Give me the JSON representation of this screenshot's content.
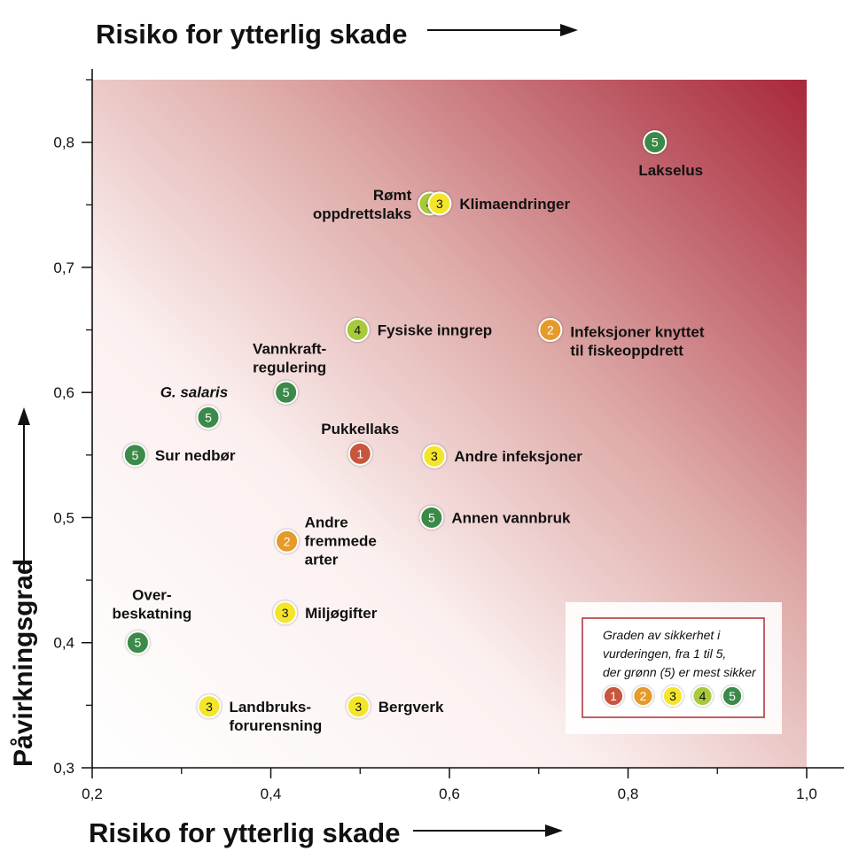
{
  "chart_data": {
    "type": "scatter",
    "title_top": "Risiko for ytterlig skade",
    "xlabel": "Risiko for ytterlig skade",
    "ylabel": "Påvirkningsgrad",
    "xlim": [
      0.2,
      1.0
    ],
    "ylim": [
      0.3,
      0.85
    ],
    "x_ticks": [
      {
        "value": 0.2,
        "label": "0,2"
      },
      {
        "value": 0.4,
        "label": "0,4"
      },
      {
        "value": 0.6,
        "label": "0,6"
      },
      {
        "value": 0.8,
        "label": "0,8"
      },
      {
        "value": 1.0,
        "label": "1,0"
      }
    ],
    "y_ticks": [
      {
        "value": 0.3,
        "label": "0,3"
      },
      {
        "value": 0.4,
        "label": "0,4"
      },
      {
        "value": 0.5,
        "label": "0,5"
      },
      {
        "value": 0.6,
        "label": "0,6"
      },
      {
        "value": 0.7,
        "label": "0,7"
      },
      {
        "value": 0.8,
        "label": "0,8"
      }
    ],
    "points": [
      {
        "name": "Lakselus",
        "label_lines": [
          "Lakselus"
        ],
        "x": 0.83,
        "y": 0.8,
        "certainty": 5,
        "label_pos": "below"
      },
      {
        "name": "Rømt oppdrettslaks",
        "label_lines": [
          "Rømt",
          "oppdrettslaks"
        ],
        "x": 0.578,
        "y": 0.751,
        "certainty": 4,
        "label_pos": "left"
      },
      {
        "name": "Klimaendringer",
        "label_lines": [
          "Klimaendringer"
        ],
        "x": 0.589,
        "y": 0.751,
        "certainty": 3,
        "label_pos": "right"
      },
      {
        "name": "Fysiske inngrep",
        "label_lines": [
          "Fysiske inngrep"
        ],
        "x": 0.497,
        "y": 0.65,
        "certainty": 4,
        "label_pos": "right"
      },
      {
        "name": "Infeksjoner knyttet til fiskeoppdrett",
        "label_lines": [
          "Infeksjoner knyttet",
          "til fiskeoppdrett"
        ],
        "x": 0.713,
        "y": 0.65,
        "certainty": 2,
        "label_pos": "right"
      },
      {
        "name": "Vannkraftregulering",
        "label_lines": [
          "Vannkraft-",
          "regulering"
        ],
        "x": 0.417,
        "y": 0.6,
        "certainty": 5,
        "label_pos": "above"
      },
      {
        "name": "G. salaris",
        "label_lines": [
          "G. salaris"
        ],
        "x": 0.33,
        "y": 0.58,
        "certainty": 5,
        "label_pos": "above",
        "italic": true
      },
      {
        "name": "Sur nedbør",
        "label_lines": [
          "Sur nedbør"
        ],
        "x": 0.248,
        "y": 0.55,
        "certainty": 5,
        "label_pos": "right"
      },
      {
        "name": "Pukkellaks",
        "label_lines": [
          "Pukkellaks"
        ],
        "x": 0.5,
        "y": 0.551,
        "certainty": 1,
        "label_pos": "above"
      },
      {
        "name": "Andre infeksjoner",
        "label_lines": [
          "Andre infeksjoner"
        ],
        "x": 0.583,
        "y": 0.549,
        "certainty": 3,
        "label_pos": "right"
      },
      {
        "name": "Annen vannbruk",
        "label_lines": [
          "Annen vannbruk"
        ],
        "x": 0.58,
        "y": 0.5,
        "certainty": 5,
        "label_pos": "right"
      },
      {
        "name": "Andre fremmede arter",
        "label_lines": [
          "Andre",
          "fremmede",
          "arter"
        ],
        "x": 0.418,
        "y": 0.481,
        "certainty": 2,
        "label_pos": "right"
      },
      {
        "name": "Miljøgifter",
        "label_lines": [
          "Miljøgifter"
        ],
        "x": 0.416,
        "y": 0.424,
        "certainty": 3,
        "label_pos": "right"
      },
      {
        "name": "Overbeskatning",
        "label_lines": [
          "Over-",
          "beskatning"
        ],
        "x": 0.251,
        "y": 0.4,
        "certainty": 5,
        "label_pos": "above"
      },
      {
        "name": "Landbruksforurensning",
        "label_lines": [
          "Landbruks-",
          "forurensning"
        ],
        "x": 0.331,
        "y": 0.349,
        "certainty": 3,
        "label_pos": "right"
      },
      {
        "name": "Bergverk",
        "label_lines": [
          "Bergverk"
        ],
        "x": 0.498,
        "y": 0.349,
        "certainty": 3,
        "label_pos": "right"
      }
    ],
    "legend": {
      "lines": [
        "Graden av sikkerhet i",
        "vurderingen, fra 1 til 5,",
        "der grønn (5) er mest sikker"
      ],
      "levels": [
        1,
        2,
        3,
        4,
        5
      ],
      "placement": "bottom-right"
    },
    "certainty_colors": {
      "1": "#c8553c",
      "2": "#e59a2a",
      "3": "#f4e52a",
      "4": "#a8c93a",
      "5": "#3a8a4a"
    },
    "background_gradient": [
      "#ffffff",
      "#a8283a"
    ]
  }
}
